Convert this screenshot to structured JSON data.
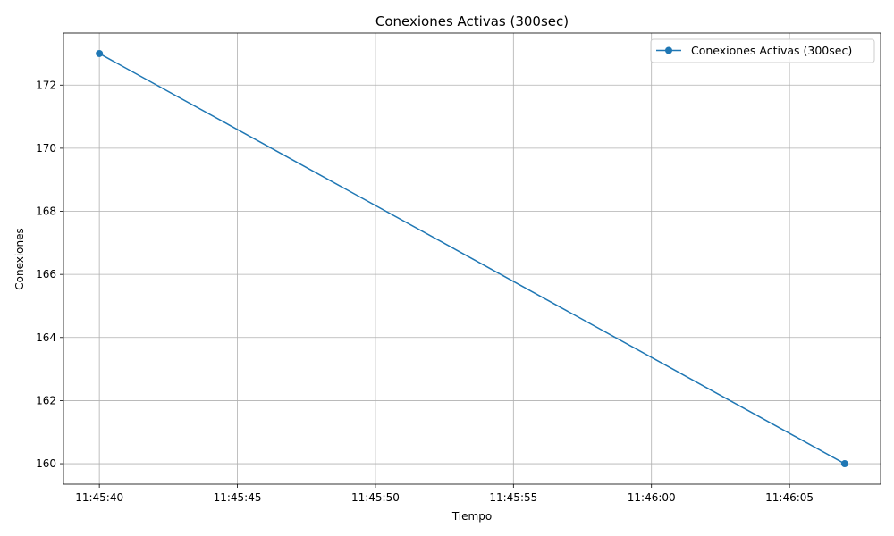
{
  "chart_data": {
    "type": "line",
    "title": "Conexiones Activas (300sec)",
    "xlabel": "Tiempo",
    "ylabel": "Conexiones",
    "x_type": "time",
    "xlim": [
      "11:45:38.7",
      "11:46:08.3"
    ],
    "ylim": [
      159.35,
      173.65
    ],
    "xticks": [
      "11:45:40",
      "11:45:45",
      "11:45:50",
      "11:45:55",
      "11:46:00",
      "11:46:05"
    ],
    "yticks": [
      160,
      162,
      164,
      166,
      168,
      170,
      172
    ],
    "grid": true,
    "legend": {
      "placement": "upper-right"
    },
    "series": [
      {
        "name": "Conexiones Activas (300sec)",
        "color": "#1f77b4",
        "marker": "circle",
        "x": [
          "11:45:40",
          "11:46:07"
        ],
        "y": [
          173,
          160
        ]
      }
    ]
  }
}
